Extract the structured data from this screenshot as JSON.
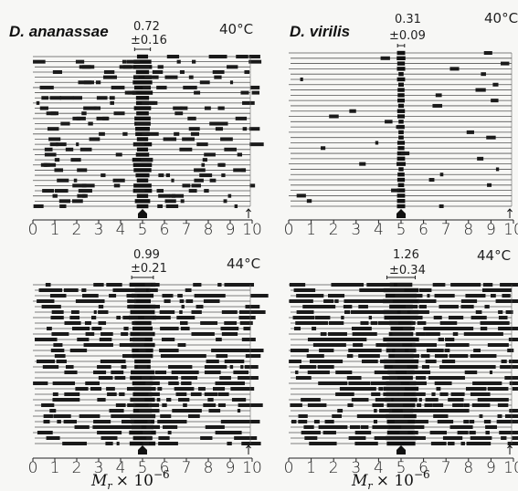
{
  "figure": {
    "xlabel_main": "M",
    "xlabel_sub": "r",
    "xlabel_times": "× 10",
    "xlabel_exp": "−6",
    "tick_labels": [
      "0",
      "1",
      "2",
      "3",
      "4",
      "5",
      "6",
      "7",
      "8",
      "9",
      "10"
    ]
  },
  "panels": [
    {
      "species": "D. ananassae",
      "temp": "40°C",
      "mean": "0.72",
      "sd": "±0.16",
      "density": 0.28,
      "center_width": 0.72,
      "marker": 5.0
    },
    {
      "species": "D. virilis",
      "temp": "40°C",
      "mean": "0.31",
      "sd": "±0.09",
      "density": 0.03,
      "center_width": 0.31,
      "marker": 5.0
    },
    {
      "species": "",
      "temp": "44°C",
      "mean": "0.99",
      "sd": "±0.21",
      "density": 0.55,
      "center_width": 0.99,
      "marker": 5.0
    },
    {
      "species": "",
      "temp": "44°C",
      "mean": "1.26",
      "sd": "±0.34",
      "density": 0.72,
      "center_width": 1.26,
      "marker": 5.0
    }
  ],
  "chart_data": [
    {
      "type": "other",
      "title": "D. ananassae 40°C",
      "xlabel": "Mr × 10^-6",
      "xlim": [
        0,
        10
      ],
      "center": 5.0,
      "width": 0.72,
      "width_sd": 0.16,
      "rows": 30
    },
    {
      "type": "other",
      "title": "D. virilis 40°C",
      "xlabel": "Mr × 10^-6",
      "xlim": [
        0,
        10
      ],
      "center": 5.0,
      "width": 0.31,
      "width_sd": 0.09,
      "rows": 30
    },
    {
      "type": "other",
      "title": "44°C",
      "xlabel": "Mr × 10^-6",
      "xlim": [
        0,
        10
      ],
      "center": 5.0,
      "width": 0.99,
      "width_sd": 0.21,
      "rows": 30
    },
    {
      "type": "other",
      "title": "44°C",
      "xlabel": "Mr × 10^-6",
      "xlim": [
        0,
        10
      ],
      "center": 5.0,
      "width": 1.26,
      "width_sd": 0.34,
      "rows": 30
    }
  ]
}
